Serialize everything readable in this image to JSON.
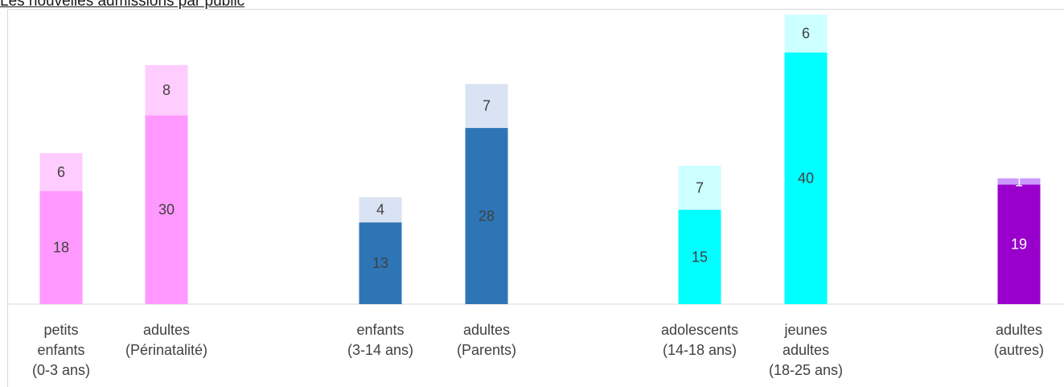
{
  "chart_data": {
    "type": "bar",
    "stacked": true,
    "title": "Les nouvelles admissions par public",
    "categories": [
      "petits\nenfants\n(0-3 ans)",
      "adultes\n(Périnatalité)",
      "enfants\n(3-14 ans)",
      "adultes\n(Parents)",
      "adolescents\n(14-18 ans)",
      "jeunes\nadultes\n(18-25 ans)",
      "adultes\n(autres)"
    ],
    "series": [
      {
        "values": [
          18,
          30,
          13,
          28,
          15,
          40,
          19
        ]
      },
      {
        "values": [
          6,
          8,
          4,
          7,
          7,
          6,
          1
        ]
      }
    ],
    "colors": {
      "base": [
        "#ff99ff",
        "#ff99ff",
        "#2e75b6",
        "#2e75b6",
        "#00ffff",
        "#00ffff",
        "#9900cc"
      ],
      "top": [
        "#ffccff",
        "#ffccff",
        "#dae3f3",
        "#dae3f3",
        "#ccffff",
        "#ccffff",
        "#cc99ff"
      ],
      "base_label": [
        "#404040",
        "#404040",
        "#404040",
        "#404040",
        "#404040",
        "#404040",
        "#ffffff"
      ],
      "top_label": [
        "#404040",
        "#404040",
        "#404040",
        "#404040",
        "#404040",
        "#404040",
        "#ffffff"
      ]
    },
    "ylim": [
      0,
      50
    ],
    "grid": false,
    "legend": "none"
  }
}
